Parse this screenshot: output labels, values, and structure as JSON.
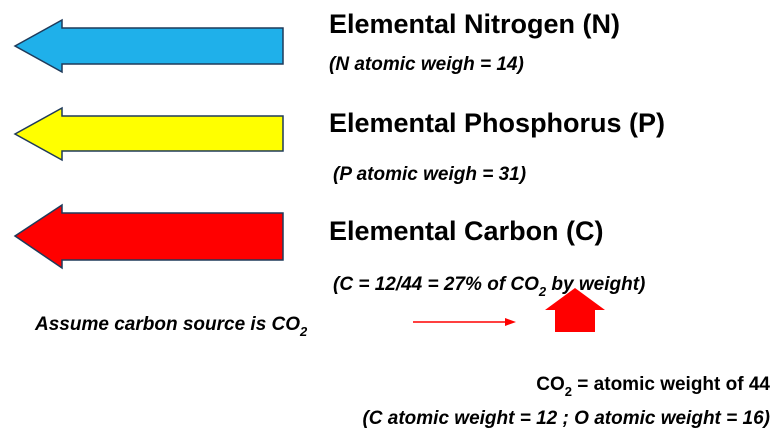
{
  "items": [
    {
      "title": "Elemental Nitrogen (N)",
      "note": "(N atomic weigh = 14)"
    },
    {
      "title": "Elemental Phosphorus (P)",
      "note": "(P atomic weigh = 31)"
    },
    {
      "title": "Elemental Carbon (C)",
      "note": {
        "before": "(C = 12/44 = 27% of CO",
        "sub": "2",
        "after": " by weight)"
      }
    }
  ],
  "assumption": {
    "before": "Assume carbon source is CO",
    "sub": "2"
  },
  "co2": {
    "line1": {
      "before": "CO",
      "sub": "2",
      "after": " = atomic weight of 44"
    },
    "line2": "(C atomic weight = 12 ; O atomic weight = 16)"
  }
}
